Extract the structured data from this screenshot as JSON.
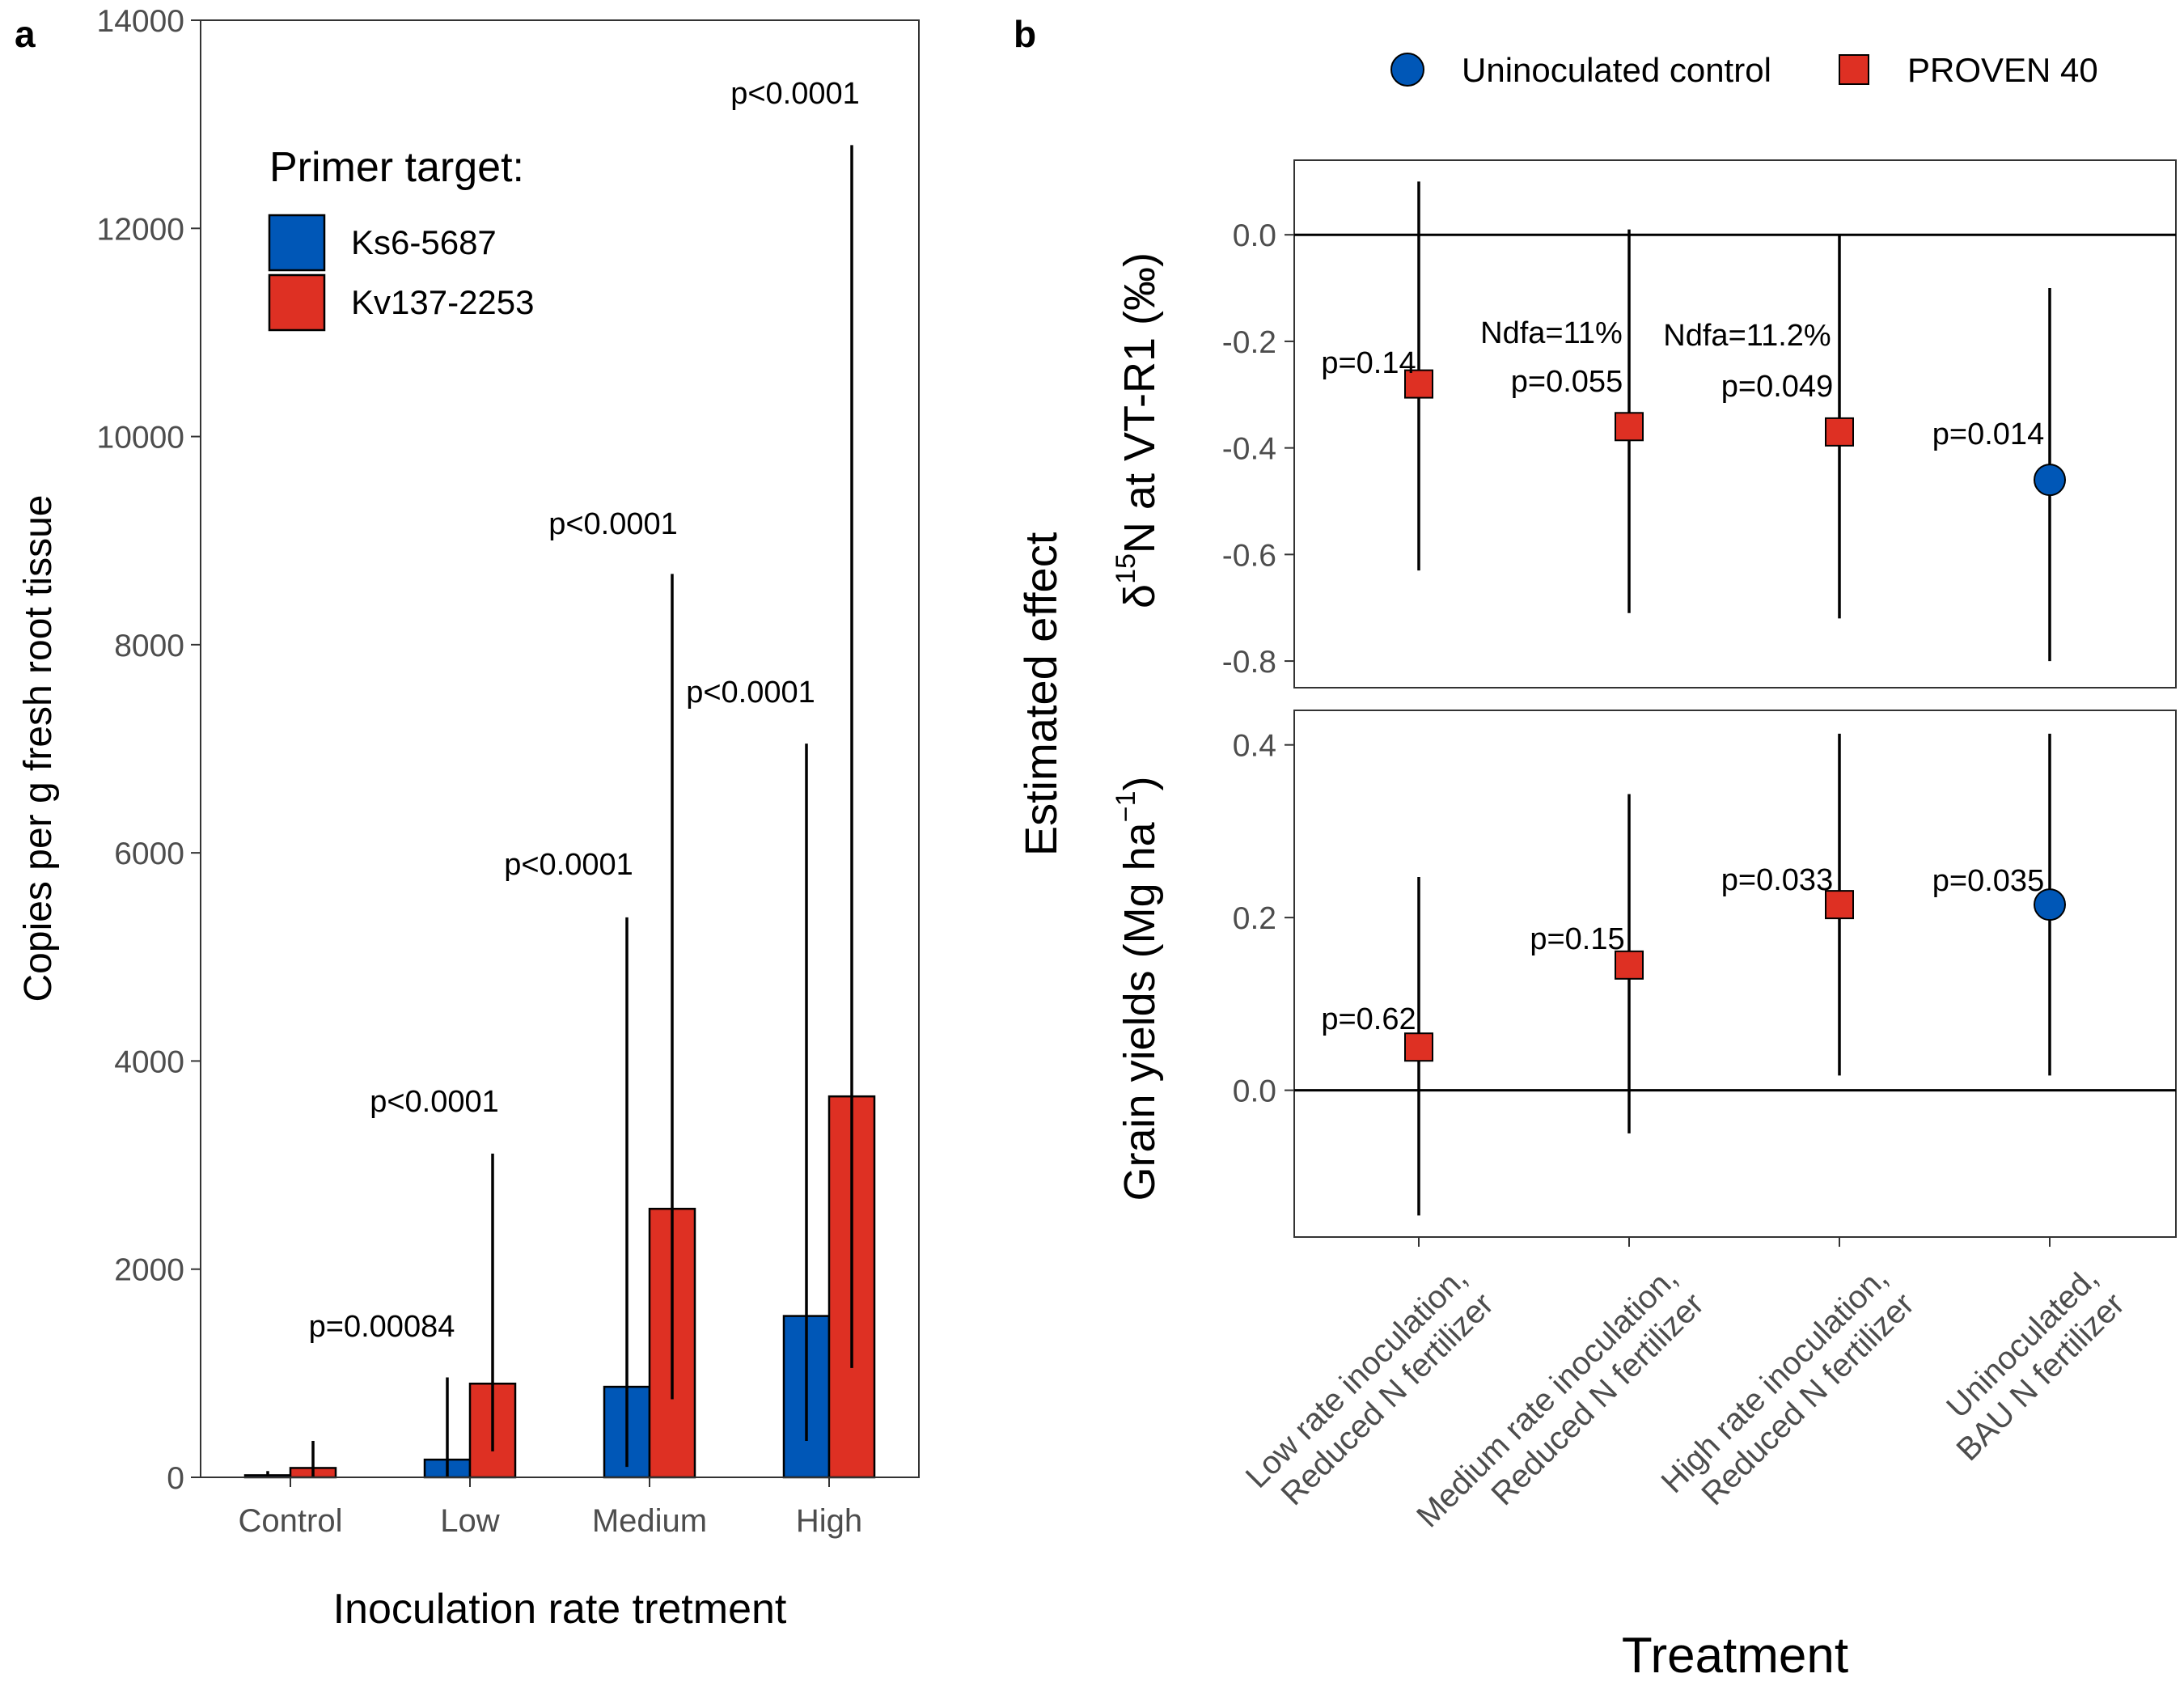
{
  "panel_a": {
    "label": "a",
    "ylabel": "Copies per g fresh root tissue",
    "xlabel": "Inoculation rate tretment",
    "legend_title": "Primer target:",
    "legend_position": "top-left",
    "colors": {
      "Ks6-5687": "#0057b7",
      "Kv137-2253": "#de3023"
    }
  },
  "panel_b": {
    "label": "b",
    "ylabel_main": "Estimated effect",
    "xlabel": "Treatment",
    "legend_position": "top",
    "ndfa_labels": [
      "Ndfa=11%",
      "Ndfa=11.2%"
    ],
    "colors": {
      "Uninoculated control": "#0057b7",
      "PROVEN 40": "#de3023"
    }
  },
  "chart_data": [
    {
      "type": "bar",
      "title": "",
      "categories": [
        "Control",
        "Low",
        "Medium",
        "High"
      ],
      "ylim": [
        0,
        14000
      ],
      "yticks": [
        0,
        2000,
        4000,
        6000,
        8000,
        10000,
        12000,
        14000
      ],
      "grid": false,
      "series": [
        {
          "name": "Ks6-5687",
          "values": [
            20,
            170,
            870,
            1550
          ],
          "err_low": [
            0,
            0,
            100,
            350
          ],
          "err_high": [
            60,
            960,
            5380,
            7050
          ]
        },
        {
          "name": "Kv137-2253",
          "values": [
            90,
            900,
            2580,
            3660
          ],
          "err_low": [
            0,
            250,
            750,
            1050
          ],
          "err_high": [
            350,
            3110,
            8680,
            12800
          ]
        }
      ],
      "annotations": [
        {
          "category": "Control",
          "text": "p=0.00084"
        },
        {
          "category": "Low",
          "text": "p<0.0001"
        },
        {
          "category": "Medium",
          "text": "p<0.0001"
        },
        {
          "category": "Medium",
          "text": "p<0.0001"
        },
        {
          "category": "High",
          "text": "p<0.0001"
        },
        {
          "category": "High",
          "text": "p<0.0001"
        }
      ]
    },
    {
      "type": "scatter",
      "title": "",
      "ylabel": "δ15N at VT-R1 (‰)",
      "categories": [
        "Low rate inoculation,\nReduced N fertilizer",
        "Medium rate inoculation,\nReduced N fertilizer",
        "High rate inoculation,\nReduced N fertilizer",
        "Uninoculated,\nBAU N fertilizer"
      ],
      "ylim": [
        -0.85,
        0.14
      ],
      "yticks": [
        0.0,
        -0.2,
        -0.4,
        -0.6,
        -0.8
      ],
      "series": [
        {
          "name": "PROVEN 40",
          "values": [
            -0.28,
            -0.36,
            -0.37,
            null
          ],
          "ci_low": [
            -0.63,
            -0.71,
            -0.72,
            null
          ],
          "ci_high": [
            0.1,
            0.01,
            0.0,
            null
          ]
        },
        {
          "name": "Uninoculated control",
          "values": [
            null,
            null,
            null,
            -0.46
          ],
          "ci_low": [
            null,
            null,
            null,
            -0.8
          ],
          "ci_high": [
            null,
            null,
            null,
            -0.1
          ]
        }
      ],
      "annotations": [
        "p=0.14",
        "p=0.055",
        "p=0.049",
        "p=0.014"
      ]
    },
    {
      "type": "scatter",
      "title": "",
      "ylabel": "Grain yields (Mg ha−1)",
      "xlabel": "Treatment",
      "categories": [
        "Low rate inoculation,\nReduced N fertilizer",
        "Medium rate inoculation,\nReduced N fertilizer",
        "High rate inoculation,\nReduced N fertilizer",
        "Uninoculated,\nBAU N fertilizer"
      ],
      "ylim": [
        -0.17,
        0.44
      ],
      "yticks": [
        0.0,
        0.2,
        0.4
      ],
      "series": [
        {
          "name": "PROVEN 40",
          "values": [
            0.05,
            0.145,
            0.215,
            null
          ],
          "ci_low": [
            -0.145,
            -0.05,
            0.017,
            null
          ],
          "ci_high": [
            0.247,
            0.343,
            0.413,
            null
          ]
        },
        {
          "name": "Uninoculated control",
          "values": [
            null,
            null,
            null,
            0.215
          ],
          "ci_low": [
            null,
            null,
            null,
            0.017
          ],
          "ci_high": [
            null,
            null,
            null,
            0.413
          ]
        }
      ],
      "annotations": [
        "p=0.62",
        "p=0.15",
        "p=0.033",
        "p=0.035"
      ]
    }
  ]
}
